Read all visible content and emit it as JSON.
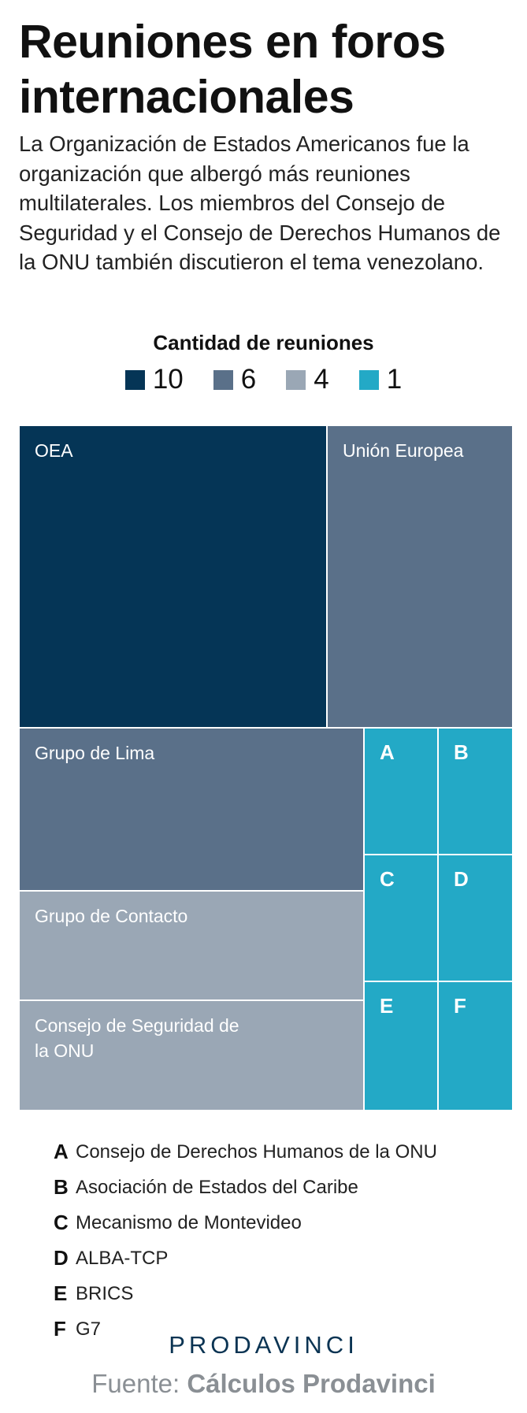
{
  "title": "Reuniones en foros internacionales",
  "subtitle": "La Organización de Estados Americanos fue la organización que albergó más reuniones multilaterales. Los miembros del Consejo de Seguridad y el Consejo de Derechos Humanos de la ONU también discutieron el tema venezolano.",
  "legend": {
    "title": "Cantidad de reuniones",
    "items": [
      {
        "label": "10",
        "color": "#053556"
      },
      {
        "label": "6",
        "color": "#5a7089"
      },
      {
        "label": "4",
        "color": "#9aa7b5"
      },
      {
        "label": "1",
        "color": "#23a9c6"
      }
    ]
  },
  "chart_data": {
    "type": "treemap",
    "title": "Cantidad de reuniones",
    "items": [
      {
        "label": "OEA",
        "value": 10,
        "color": "#053556"
      },
      {
        "label": "Unión Europea",
        "value": 6,
        "color": "#5a7089"
      },
      {
        "label": "Grupo de Lima",
        "value": 6,
        "color": "#5a7089"
      },
      {
        "label": "Grupo de Contacto",
        "value": 4,
        "color": "#9aa7b5"
      },
      {
        "label": "Consejo de Seguridad de la ONU",
        "value": 4,
        "color": "#9aa7b5"
      },
      {
        "label": "A",
        "value": 1,
        "color": "#23a9c6"
      },
      {
        "label": "B",
        "value": 1,
        "color": "#23a9c6"
      },
      {
        "label": "C",
        "value": 1,
        "color": "#23a9c6"
      },
      {
        "label": "D",
        "value": 1,
        "color": "#23a9c6"
      },
      {
        "label": "E",
        "value": 1,
        "color": "#23a9c6"
      },
      {
        "label": "F",
        "value": 1,
        "color": "#23a9c6"
      }
    ]
  },
  "key": [
    {
      "letter": "A",
      "name": "Consejo de Derechos Humanos de la ONU"
    },
    {
      "letter": "B",
      "name": "Asociación de Estados del Caribe"
    },
    {
      "letter": "C",
      "name": "Mecanismo de Montevideo"
    },
    {
      "letter": "D",
      "name": "ALBA-TCP"
    },
    {
      "letter": "E",
      "name": "BRICS"
    },
    {
      "letter": "F",
      "name": "G7"
    }
  ],
  "logo": "PRODAVINCI",
  "source": {
    "prefix": "Fuente: ",
    "name": "Cálculos Prodavinci"
  }
}
